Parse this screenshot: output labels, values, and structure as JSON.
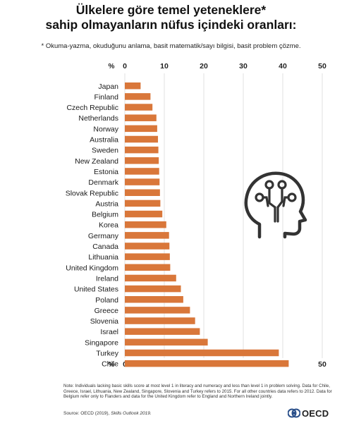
{
  "title_lines": [
    "Ülkelere göre temel yeteneklere*",
    "sahip olmayanların nüfus içindeki oranları:"
  ],
  "subtitle": "* Okuma-yazma, okuduğunu anlama, basit matematik/sayı bilgisi, basit problem çözme.",
  "note": "Note: Individuals lacking basic skills score at most level 1 in literacy and numeracy and less than level 1 in problem solving. Data for Chile, Greece, Israel, Lithuania, New Zealand, Singapore, Slovenia and Turkey refers to 2015. For all other countries data refers to 2012. Data for Belgium refer only to Flanders and data for the United Kingdom refer to England and Northern Ireland jointly.",
  "source_prefix": "Source: OECD (2019),",
  "source_title": "Skills Outlook 2019.",
  "logo_text": "OECD",
  "colors": {
    "bar": "#d9773a",
    "grid": "#d9d9d9",
    "logo_ring": "#2a4f8a"
  },
  "icons": {
    "head": "head-circuit-icon",
    "logo": "oecd-logo-icon"
  },
  "chart_data": {
    "type": "bar",
    "orientation": "horizontal",
    "axis_unit_label": "%",
    "xlim": [
      0,
      50
    ],
    "ticks": [
      0,
      10,
      20,
      30,
      40,
      50
    ],
    "grid": true,
    "axis_repeated_top_and_bottom": true,
    "categories": [
      "Japan",
      "Finland",
      "Czech Republic",
      "Netherlands",
      "Norway",
      "Australia",
      "Sweden",
      "New Zealand",
      "Estonia",
      "Denmark",
      "Slovak Republic",
      "Austria",
      "Belgium",
      "Korea",
      "Germany",
      "Canada",
      "Lithuania",
      "United Kingdom",
      "Ireland",
      "United States",
      "Poland",
      "Greece",
      "Slovenia",
      "Israel",
      "Singapore",
      "Turkey",
      "Chile"
    ],
    "values": [
      4,
      6.5,
      7,
      8,
      8.2,
      8.4,
      8.5,
      8.6,
      8.7,
      8.8,
      8.9,
      9,
      9.5,
      10.5,
      11.2,
      11.3,
      11.4,
      11.5,
      13,
      14.2,
      14.8,
      16.5,
      17.8,
      19,
      21,
      39,
      41.5
    ]
  }
}
